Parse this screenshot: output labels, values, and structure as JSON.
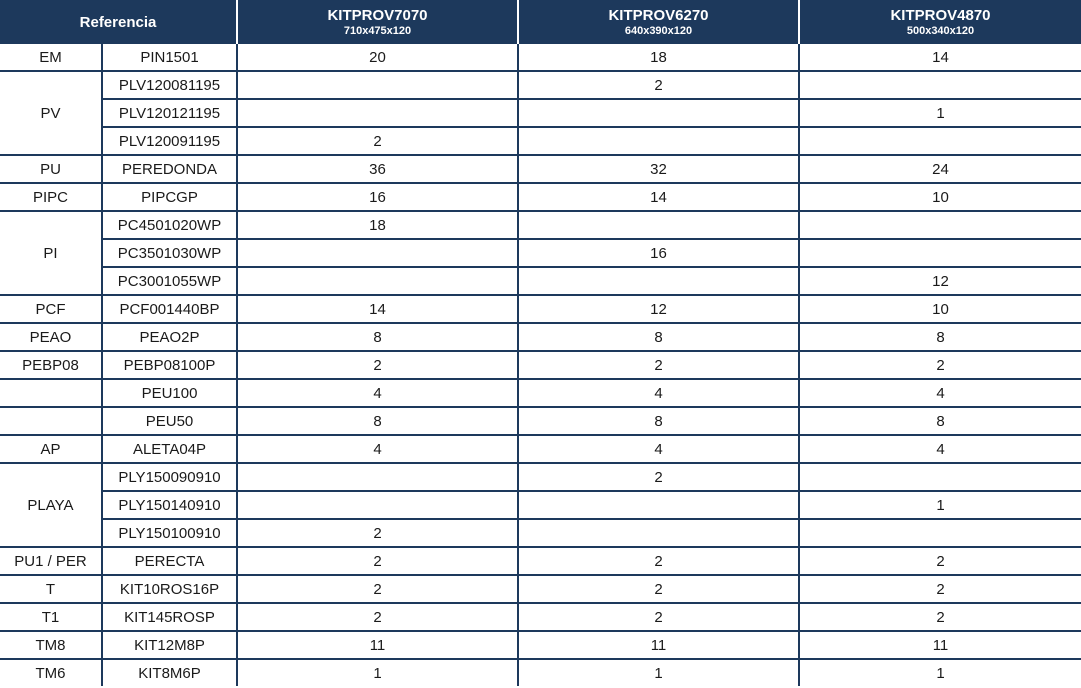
{
  "table": {
    "referencia_label": "Referencia",
    "kits": [
      {
        "name": "KITPROV7070",
        "size": "710x475x120"
      },
      {
        "name": "KITPROV6270",
        "size": "640x390x120"
      },
      {
        "name": "KITPROV4870",
        "size": "500x340x120"
      }
    ],
    "rows": [
      {
        "category": {
          "label": "EM",
          "rowspan": 1
        },
        "ref": "PIN1501",
        "qty": [
          "20",
          "18",
          "14"
        ]
      },
      {
        "category": {
          "label": "PV",
          "rowspan": 3
        },
        "ref": "PLV120081195",
        "qty": [
          "",
          "2",
          ""
        ]
      },
      {
        "ref": "PLV120121195",
        "qty": [
          "",
          "",
          "1"
        ]
      },
      {
        "ref": "PLV120091195",
        "qty": [
          "2",
          "",
          ""
        ]
      },
      {
        "category": {
          "label": "PU",
          "rowspan": 1
        },
        "ref": "PEREDONDA",
        "qty": [
          "36",
          "32",
          "24"
        ]
      },
      {
        "category": {
          "label": "PIPC",
          "rowspan": 1
        },
        "ref": "PIPCGP",
        "qty": [
          "16",
          "14",
          "10"
        ]
      },
      {
        "category": {
          "label": "PI",
          "rowspan": 3
        },
        "ref": "PC4501020WP",
        "qty": [
          "18",
          "",
          ""
        ]
      },
      {
        "ref": "PC3501030WP",
        "qty": [
          "",
          "16",
          ""
        ]
      },
      {
        "ref": "PC3001055WP",
        "qty": [
          "",
          "",
          "12"
        ]
      },
      {
        "category": {
          "label": "PCF",
          "rowspan": 1
        },
        "ref": "PCF001440BP",
        "qty": [
          "14",
          "12",
          "10"
        ]
      },
      {
        "category": {
          "label": "PEAO",
          "rowspan": 1
        },
        "ref": "PEAO2P",
        "qty": [
          "8",
          "8",
          "8"
        ]
      },
      {
        "category": {
          "label": "PEBP08",
          "rowspan": 1
        },
        "ref": "PEBP08100P",
        "qty": [
          "2",
          "2",
          "2"
        ]
      },
      {
        "category": {
          "label": "",
          "rowspan": 1
        },
        "ref": "PEU100",
        "qty": [
          "4",
          "4",
          "4"
        ]
      },
      {
        "category": {
          "label": "",
          "rowspan": 1
        },
        "ref": "PEU50",
        "qty": [
          "8",
          "8",
          "8"
        ]
      },
      {
        "category": {
          "label": "AP",
          "rowspan": 1
        },
        "ref": "ALETA04P",
        "qty": [
          "4",
          "4",
          "4"
        ]
      },
      {
        "category": {
          "label": "PLAYA",
          "rowspan": 3
        },
        "ref": "PLY150090910",
        "qty": [
          "",
          "2",
          ""
        ]
      },
      {
        "ref": "PLY150140910",
        "qty": [
          "",
          "",
          "1"
        ]
      },
      {
        "ref": "PLY150100910",
        "qty": [
          "2",
          "",
          ""
        ]
      },
      {
        "category": {
          "label": "PU1 / PER",
          "rowspan": 1
        },
        "ref": "PERECTA",
        "qty": [
          "2",
          "2",
          "2"
        ]
      },
      {
        "category": {
          "label": "T",
          "rowspan": 1
        },
        "ref": "KIT10ROS16P",
        "qty": [
          "2",
          "2",
          "2"
        ]
      },
      {
        "category": {
          "label": "T1",
          "rowspan": 1
        },
        "ref": "KIT145ROSP",
        "qty": [
          "2",
          "2",
          "2"
        ]
      },
      {
        "category": {
          "label": "TM8",
          "rowspan": 1
        },
        "ref": "KIT12M8P",
        "qty": [
          "11",
          "11",
          "11"
        ]
      },
      {
        "category": {
          "label": "TM6",
          "rowspan": 1
        },
        "ref": "KIT8M6P",
        "qty": [
          "1",
          "1",
          "1"
        ]
      }
    ]
  },
  "colors": {
    "header_bg": "#1d395c",
    "header_text": "#ffffff",
    "border": "#1d395c",
    "body_text": "#1a1a1a"
  }
}
